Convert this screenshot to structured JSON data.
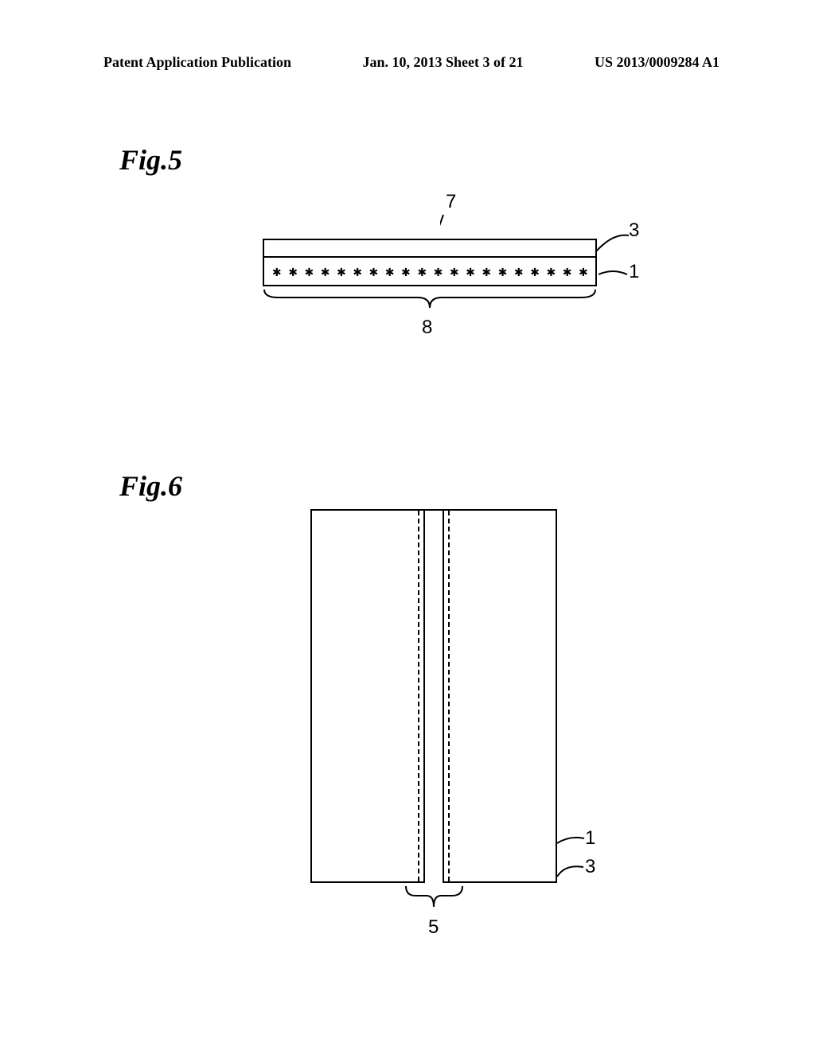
{
  "header": {
    "left": "Patent Application Publication",
    "center": "Jan. 10, 2013  Sheet 3 of 21",
    "right": "US 2013/0009284 A1"
  },
  "fig5": {
    "label": "Fig.5",
    "annotations": {
      "label7": "7",
      "label3": "3",
      "label1": "1",
      "label8": "8"
    },
    "layer1_pattern_count": 20,
    "style": {
      "border_color": "#000000",
      "background": "#ffffff",
      "asterisk_char": "✱",
      "line_width": 2
    }
  },
  "fig6": {
    "label": "Fig.6",
    "annotations": {
      "label1": "1",
      "label3": "3",
      "label5": "5"
    },
    "style": {
      "border_color": "#000000",
      "background": "#ffffff",
      "slot_dash": "dashed",
      "line_width": 2
    }
  }
}
